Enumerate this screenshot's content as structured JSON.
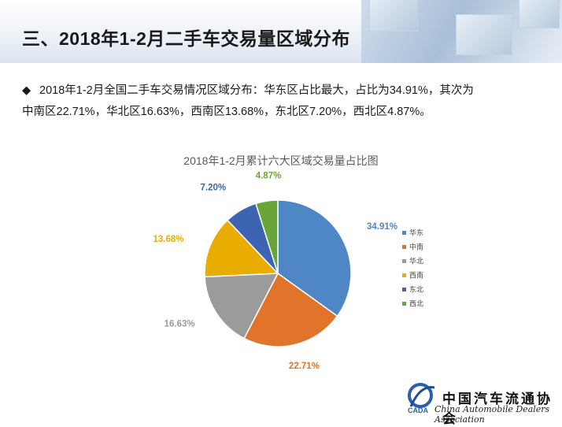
{
  "header": {
    "title": "三、2018年1-2月二手车交易量区域分布"
  },
  "bullet": {
    "symbol": "◆",
    "line1": "2018年1-2月全国二手车交易情况区域分布：华东区占比最大，占比为34.91%，其次为",
    "line2": "中南区22.71%，华北区16.63%，西南区13.68%，东北区7.20%，西北区4.87%。"
  },
  "logo": {
    "cn": "中国汽车流通协会",
    "en": "China Automobile Dealers Association",
    "mark": "CADA"
  },
  "chart_data": {
    "type": "pie",
    "title": "2018年1-2月累计六大区域交易量占比图",
    "legend_position": "right",
    "slices": [
      {
        "label": "华东",
        "value": 34.91,
        "display": "34.91%",
        "color": "#4f86c6"
      },
      {
        "label": "中南",
        "value": 22.71,
        "display": "22.71%",
        "color": "#e0742a"
      },
      {
        "label": "华北",
        "value": 16.63,
        "display": "16.63%",
        "color": "#9b9b9b"
      },
      {
        "label": "西南",
        "value": 13.68,
        "display": "13.68%",
        "color": "#e8ad00"
      },
      {
        "label": "东北",
        "value": 7.2,
        "display": "7.20%",
        "color": "#3d63b3"
      },
      {
        "label": "西北",
        "value": 4.87,
        "display": "4.87%",
        "color": "#6aa53a"
      }
    ]
  }
}
